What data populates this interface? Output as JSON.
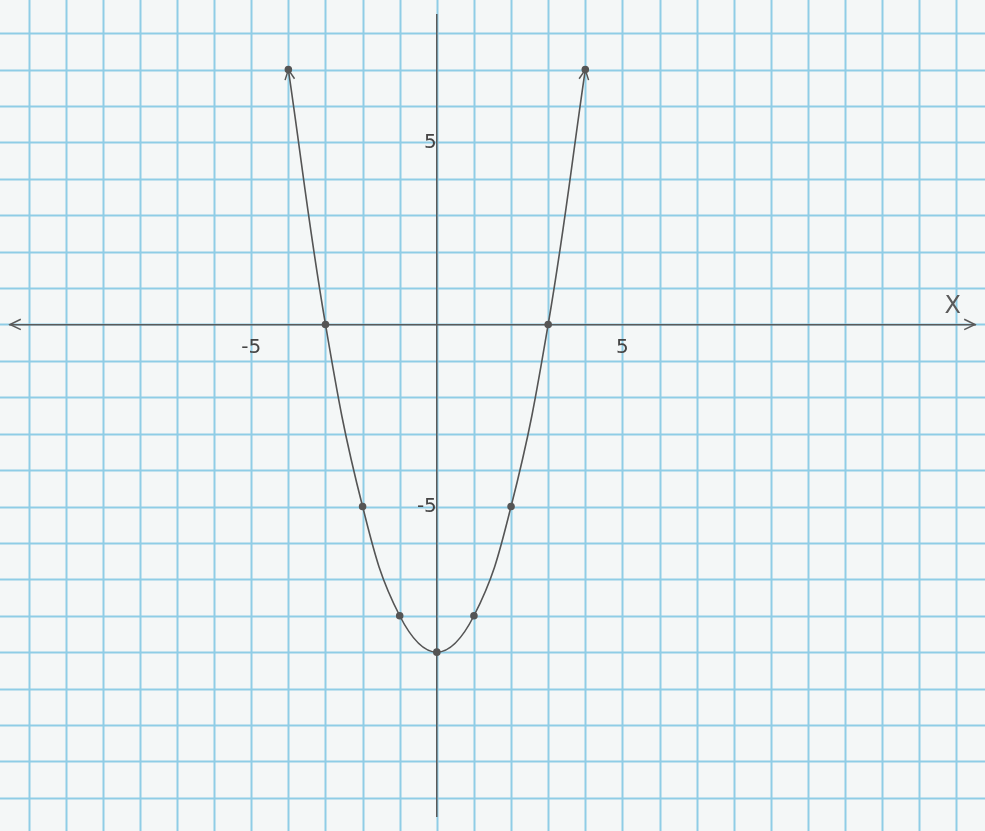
{
  "chart_data": {
    "type": "line",
    "x_label": "X",
    "x": [
      -4,
      -3,
      -2,
      -1,
      0,
      1,
      2,
      3,
      4
    ],
    "values": [
      7,
      0,
      -5,
      -8,
      -9,
      -8,
      -5,
      0,
      7
    ],
    "color": "#555555",
    "marker": "circle",
    "line_style": "solid",
    "xlim": [
      -11.5,
      14.5
    ],
    "ylim": [
      -13.5,
      8.5
    ],
    "xticks": [
      -5,
      5
    ],
    "yticks": [
      -5,
      5
    ],
    "grid": true
  }
}
